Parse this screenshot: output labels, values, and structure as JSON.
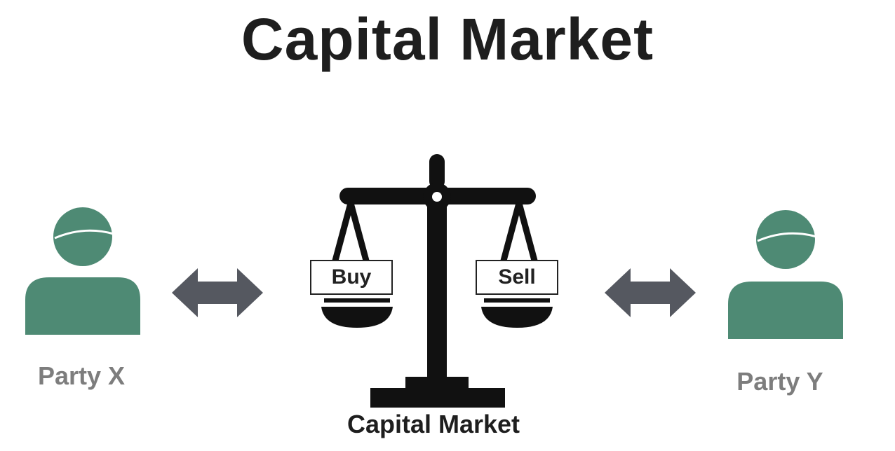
{
  "title": "Capital Market",
  "parties": {
    "left": {
      "label": "Party X"
    },
    "right": {
      "label": "Party Y"
    }
  },
  "scale": {
    "left_pan_label": "Buy",
    "right_pan_label": "Sell",
    "base_label": "Capital Market"
  },
  "colors": {
    "person": "#4e8a74",
    "arrow": "#555860",
    "scale": "#111111",
    "title": "#1e1e1e",
    "party_text": "#7d7d7d"
  },
  "icons": {
    "party_x": "person-icon",
    "party_y": "person-icon",
    "arrows": "double-arrow-icon",
    "center": "balance-scale-icon"
  }
}
